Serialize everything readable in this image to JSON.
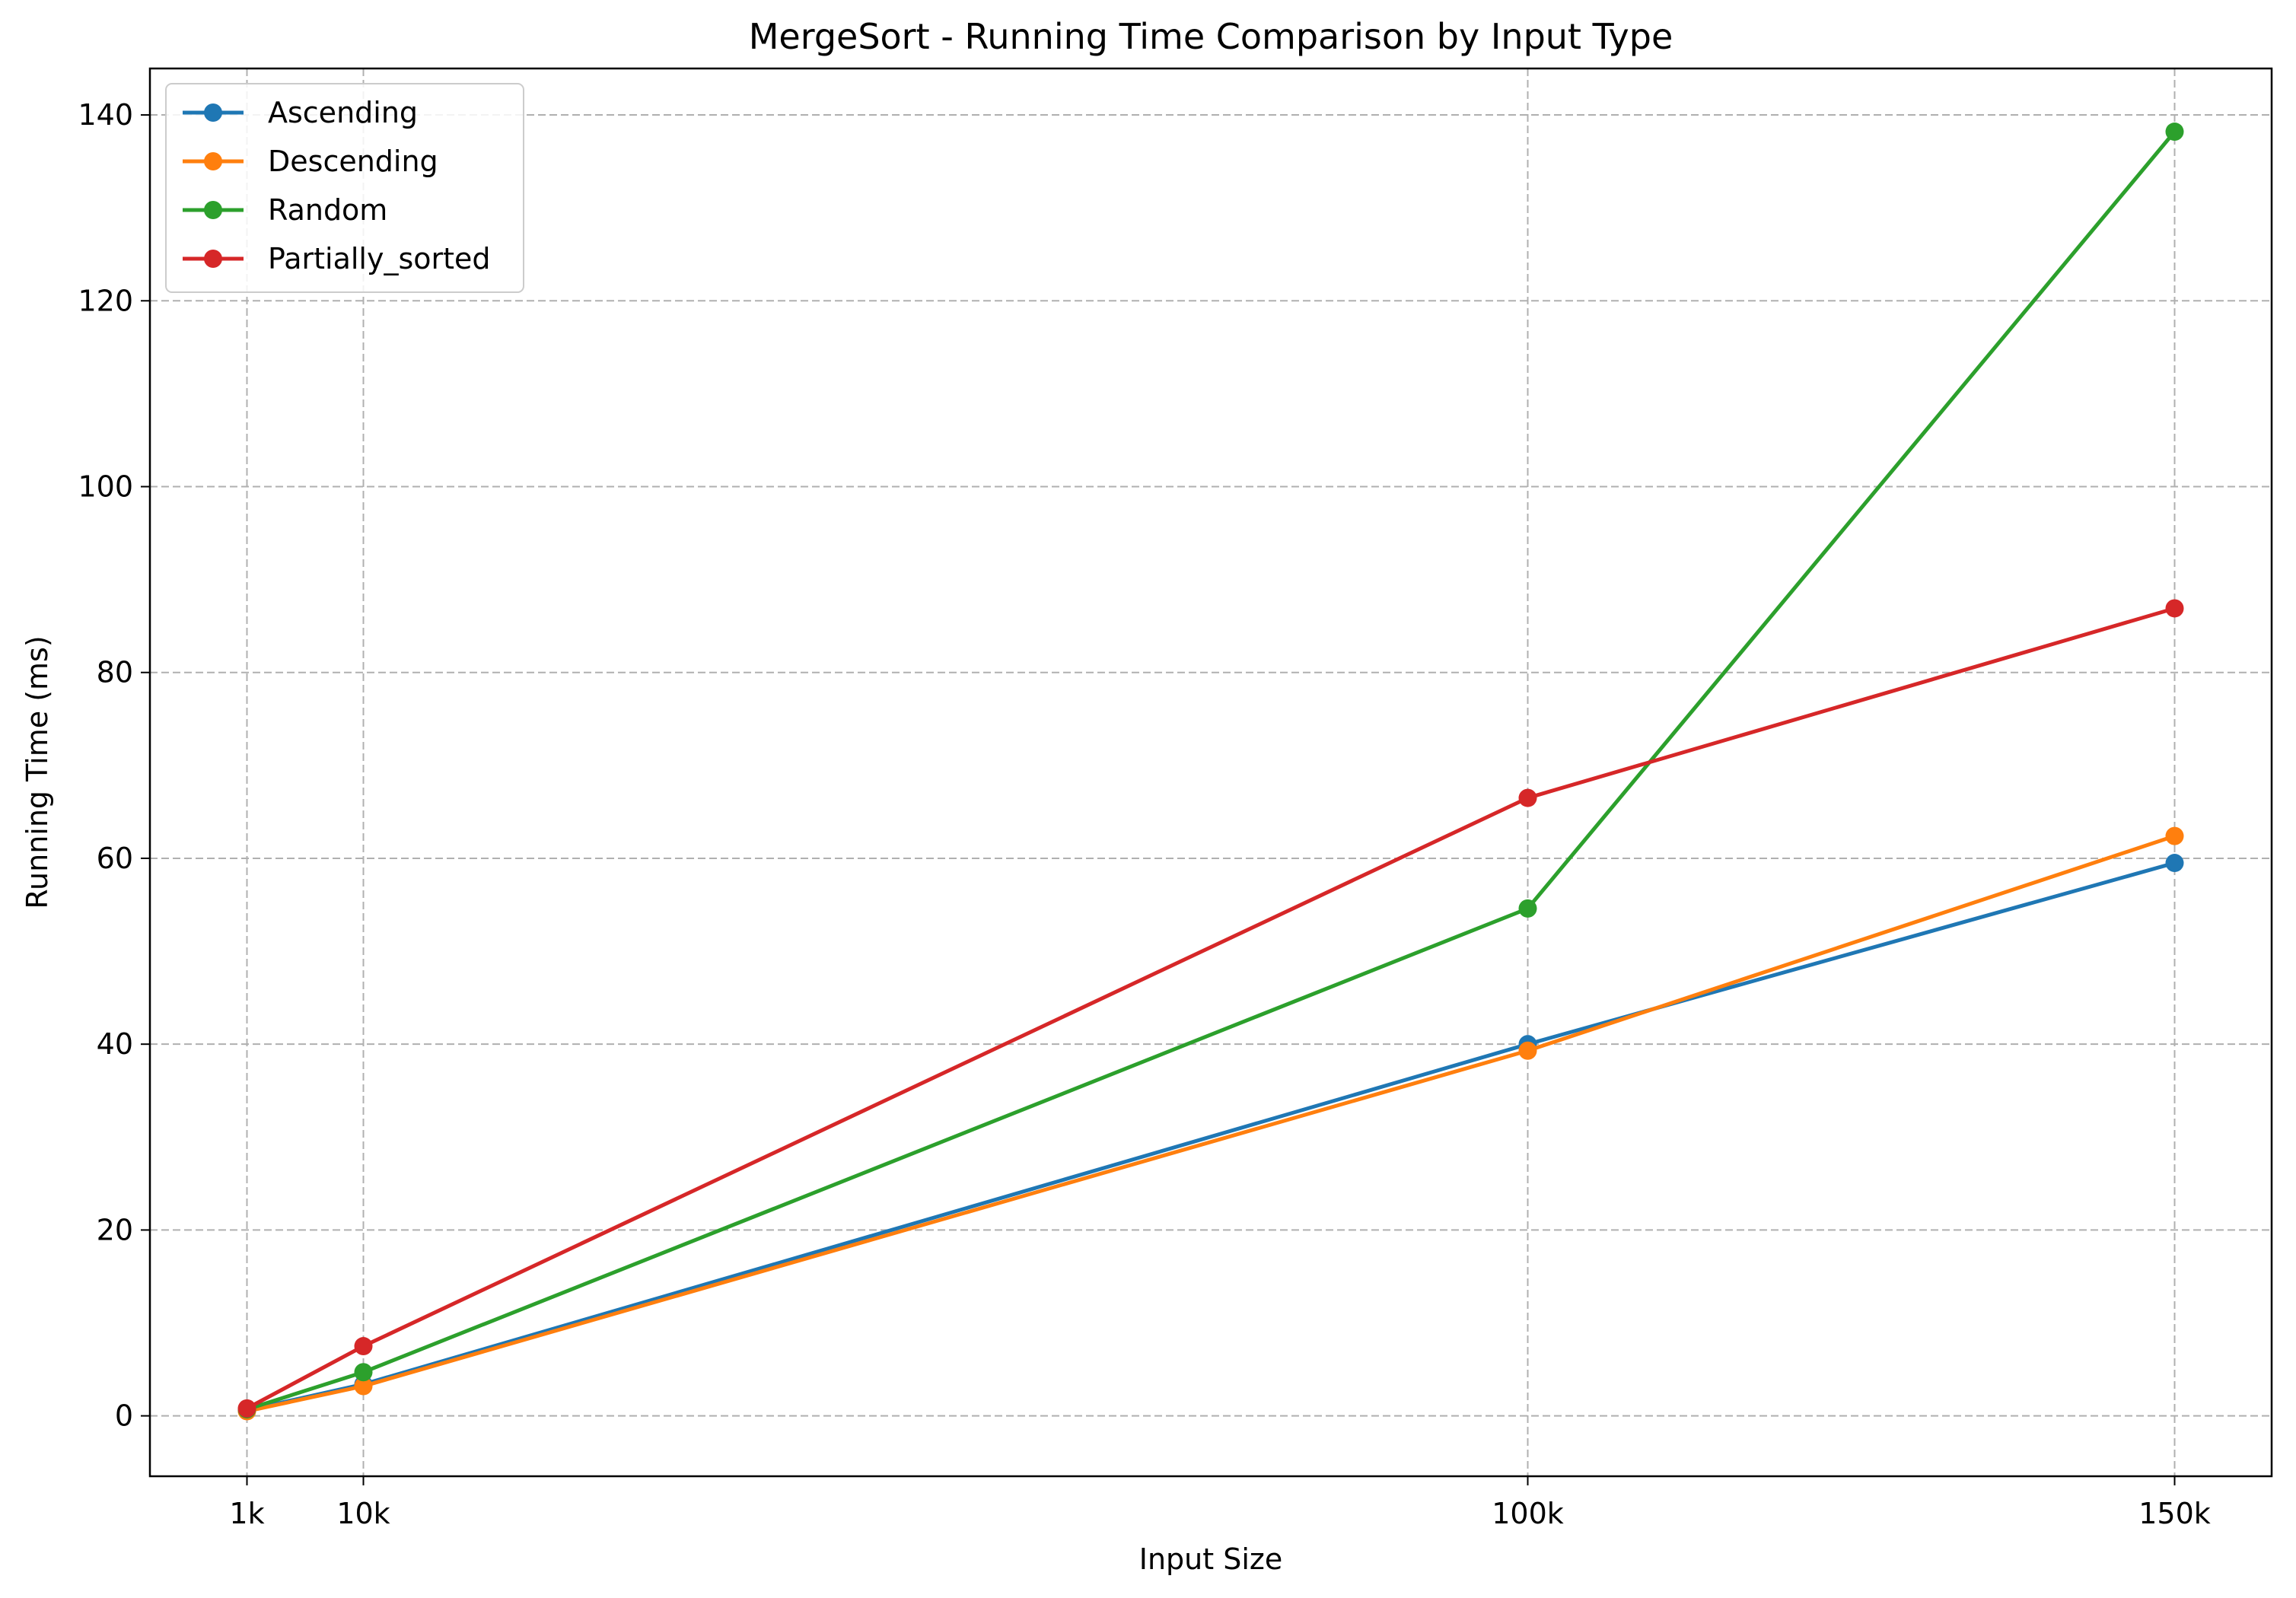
{
  "chart_data": {
    "type": "line",
    "title": "MergeSort - Running Time Comparison by Input Type",
    "xlabel": "Input Size",
    "ylabel": "Running Time (ms)",
    "x": [
      1000,
      10000,
      100000,
      150000
    ],
    "x_tick_labels": [
      "1k",
      "10k",
      "100k",
      "150k"
    ],
    "y_ticks": [
      0,
      20,
      40,
      60,
      80,
      100,
      120,
      140
    ],
    "y_tick_labels": [
      "0",
      "20",
      "40",
      "60",
      "80",
      "100",
      "120",
      "140"
    ],
    "xlim": [
      -6500,
      157500
    ],
    "ylim": [
      -6.5,
      145
    ],
    "grid": true,
    "legend_position": "top-left",
    "series": [
      {
        "name": "Ascending",
        "color": "#1f77b4",
        "values": [
          0.6,
          3.4,
          40.0,
          59.5
        ]
      },
      {
        "name": "Descending",
        "color": "#ff7f0e",
        "values": [
          0.5,
          3.2,
          39.3,
          62.4
        ]
      },
      {
        "name": "Random",
        "color": "#2ca02c",
        "values": [
          0.7,
          4.7,
          54.6,
          138.2
        ]
      },
      {
        "name": "Partially_sorted",
        "color": "#d62728",
        "values": [
          0.8,
          7.5,
          66.5,
          86.9
        ]
      }
    ]
  }
}
